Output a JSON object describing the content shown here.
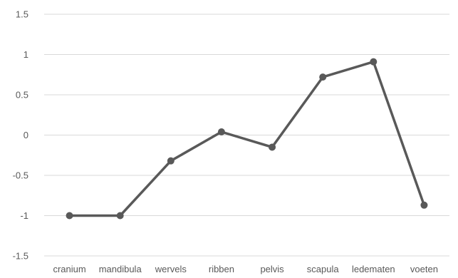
{
  "chart_data": {
    "type": "line",
    "title": "",
    "xlabel": "",
    "ylabel": "",
    "categories": [
      "cranium",
      "mandibula",
      "wervels",
      "ribben",
      "pelvis",
      "scapula",
      "ledematen",
      "voeten"
    ],
    "series": [
      {
        "values": [
          -1.0,
          -1.0,
          -0.32,
          0.04,
          -0.15,
          0.72,
          0.91,
          -0.87
        ],
        "color": "#595959"
      }
    ],
    "ylim": [
      -1.5,
      1.5
    ],
    "yticks": [
      -1.5,
      -1,
      -0.5,
      0,
      0.5,
      1,
      1.5
    ],
    "ytick_labels": [
      "-1.5",
      "-1",
      "-0.5",
      "0",
      "0.5",
      "1",
      "1.5"
    ],
    "grid": true,
    "legend": "none"
  }
}
